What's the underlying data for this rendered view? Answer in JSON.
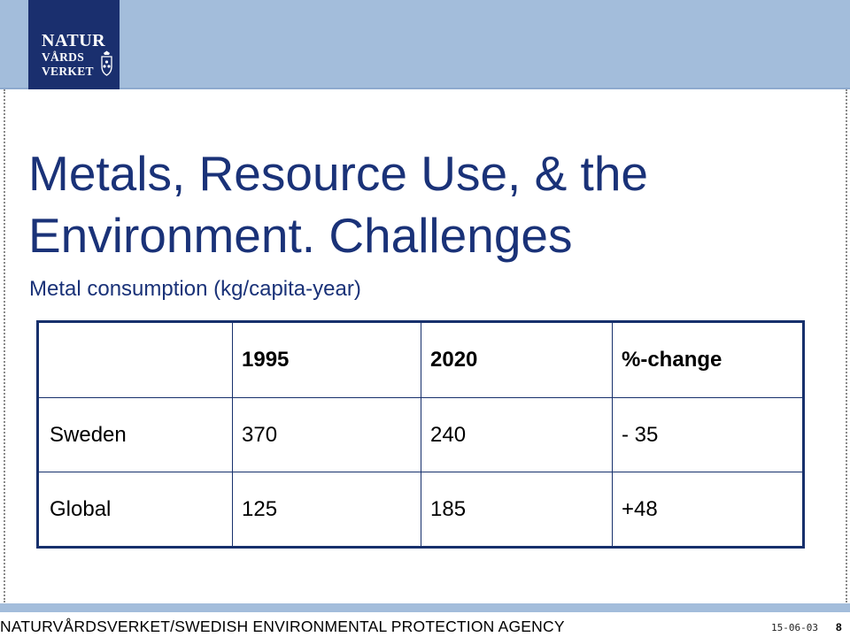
{
  "logo": {
    "line1": "NATUR",
    "line2": "VÅRDS",
    "line3": "VERKET"
  },
  "title": "Metals, Resource Use, & the Environment. Challenges",
  "subtitle": "Metal consumption (kg/capita-year)",
  "table": {
    "header": [
      "",
      "1995",
      "2020",
      "%-change"
    ],
    "rows": [
      [
        "Sweden",
        "370",
        "240",
        "- 35"
      ],
      [
        "Global",
        "125",
        "185",
        "+48"
      ]
    ]
  },
  "footer": {
    "agency": "NATURVÅRDSVERKET/SWEDISH ENVIRONMENTAL PROTECTION AGENCY",
    "date": "15-06-03",
    "page": "8"
  },
  "colors": {
    "band": "#a3bddb",
    "logo_bg": "#1a2f6e",
    "title": "#1a3278",
    "table_border": "#17306c"
  },
  "icons": {
    "logo_emblem": "coat-of-arms-icon"
  }
}
